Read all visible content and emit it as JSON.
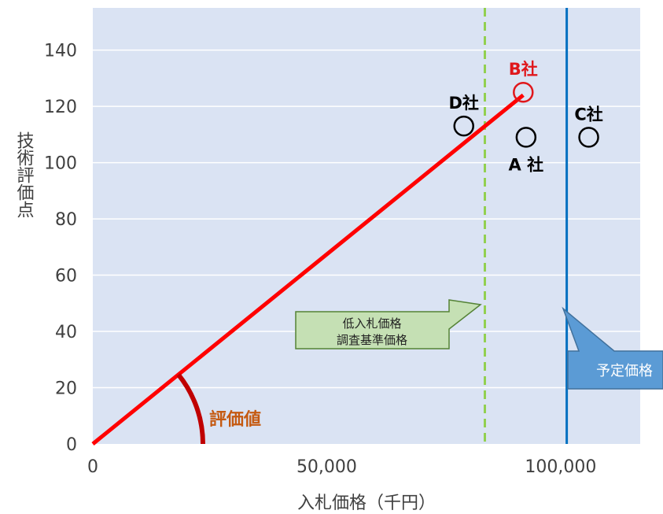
{
  "chart_data": {
    "type": "scatter",
    "xlabel": "入札価格（千円）",
    "ylabel": "技術評価点",
    "xlim": [
      0,
      117000
    ],
    "ylim": [
      0,
      155
    ],
    "x_ticks": [
      {
        "value": 0,
        "label": "0"
      },
      {
        "value": 50000,
        "label": "50,000"
      },
      {
        "value": 100000,
        "label": "100,000"
      }
    ],
    "y_ticks": [
      {
        "value": 0,
        "label": "0"
      },
      {
        "value": 20,
        "label": "20"
      },
      {
        "value": 40,
        "label": "40"
      },
      {
        "value": 60,
        "label": "60"
      },
      {
        "value": 80,
        "label": "80"
      },
      {
        "value": 100,
        "label": "100"
      },
      {
        "value": 120,
        "label": "120"
      },
      {
        "value": 140,
        "label": "140"
      }
    ],
    "points": [
      {
        "label": "A 社",
        "x": 92600,
        "y": 109,
        "color": "#000000",
        "label_pos": "below"
      },
      {
        "label": "B社",
        "x": 92000,
        "y": 125,
        "color": "#e0171b",
        "label_pos": "above"
      },
      {
        "label": "C社",
        "x": 106000,
        "y": 109,
        "color": "#000000",
        "label_pos": "above"
      },
      {
        "label": "D社",
        "x": 79300,
        "y": 113,
        "color": "#000000",
        "label_pos": "above"
      }
    ],
    "evaluation_line": {
      "from": [
        0,
        0
      ],
      "to": [
        92000,
        124
      ],
      "color": "#ff0000"
    },
    "angle_label": {
      "text": "評価値",
      "color": "#c55a11"
    },
    "low_bid_line": {
      "x": 83800,
      "color": "#92d050",
      "label_lines": [
        "低入札価格",
        "調査基準価格"
      ]
    },
    "planned_price_line": {
      "x": 101300,
      "color": "#0070c0",
      "label": "予定価格"
    },
    "grid": true,
    "colors": {
      "plot_bg": "#dae3f3",
      "grid": "#ffffff",
      "callout_green_fill": "#c5e0b4",
      "callout_green_border": "#548235",
      "callout_blue_fill": "#5b9bd5",
      "callout_blue_border": "#41719c",
      "arc": "#c00000"
    }
  }
}
